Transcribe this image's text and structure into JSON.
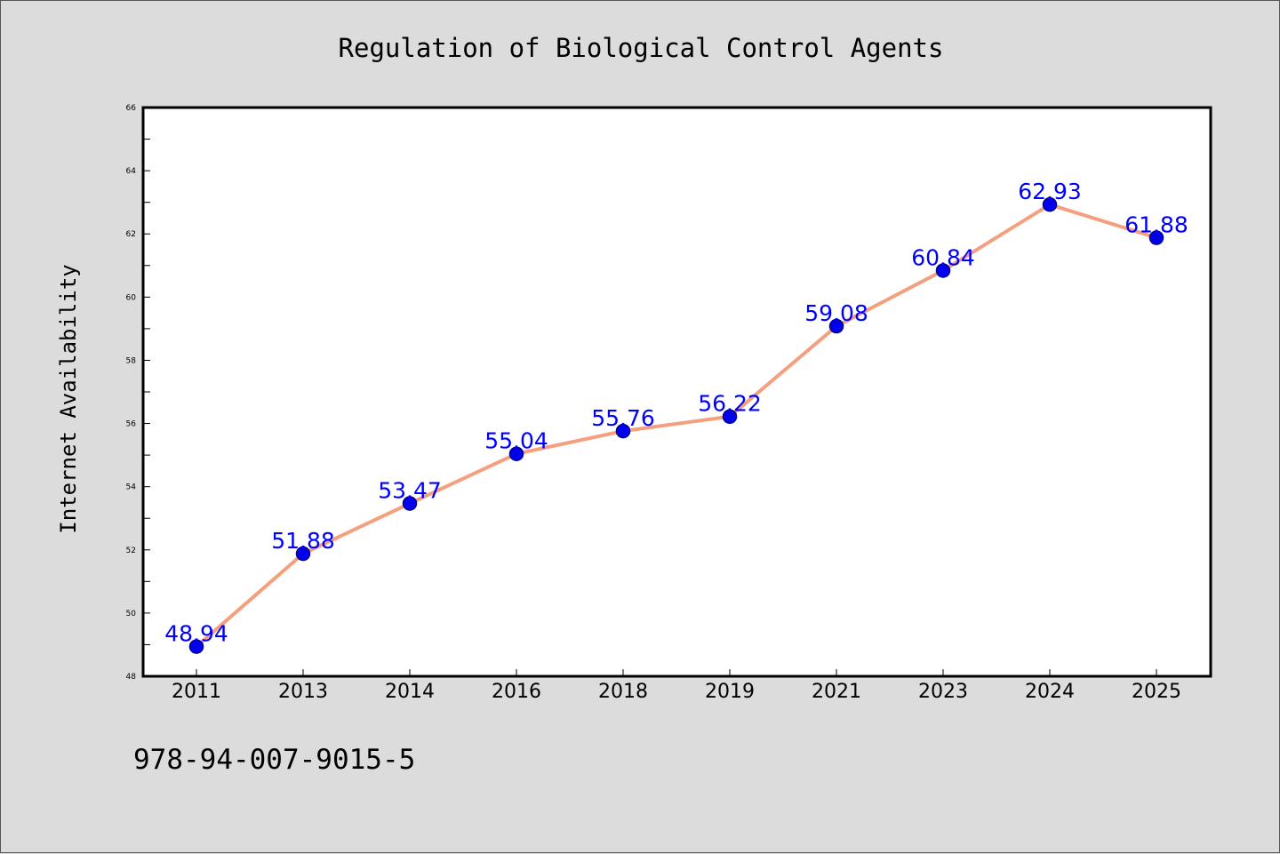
{
  "chart_data": {
    "type": "line",
    "title": "Regulation of Biological Control Agents",
    "xlabel": "",
    "ylabel": "Internet Availability",
    "categories": [
      "2011",
      "2013",
      "2014",
      "2016",
      "2018",
      "2019",
      "2021",
      "2023",
      "2024",
      "2025"
    ],
    "series": [
      {
        "values": [
          48.94,
          51.88,
          53.47,
          55.04,
          55.76,
          56.22,
          59.08,
          60.84,
          62.93,
          61.88
        ],
        "data_labels": [
          "48.94",
          "51.88",
          "53.47",
          "55.04",
          "55.76",
          "56.22",
          "59.08",
          "60.84",
          "62.93",
          "61.88"
        ]
      }
    ],
    "ylim": [
      48,
      66
    ],
    "yticks": [
      48,
      50,
      52,
      54,
      56,
      58,
      60,
      62,
      64,
      66
    ],
    "ytick_labels": [
      "48",
      "50",
      "52",
      "54",
      "56",
      "58",
      "60",
      "62",
      "64",
      "66"
    ],
    "grid": false,
    "legend": "none",
    "colors": {
      "line": "#f4a07e",
      "marker_fill": "#0000ee",
      "marker_edge": "#00008b",
      "data_label": "#0000ff",
      "plot_background": "#ffffff",
      "figure_background": "#dcdcdc"
    }
  },
  "footer": {
    "text": "978-94-007-9015-5"
  }
}
